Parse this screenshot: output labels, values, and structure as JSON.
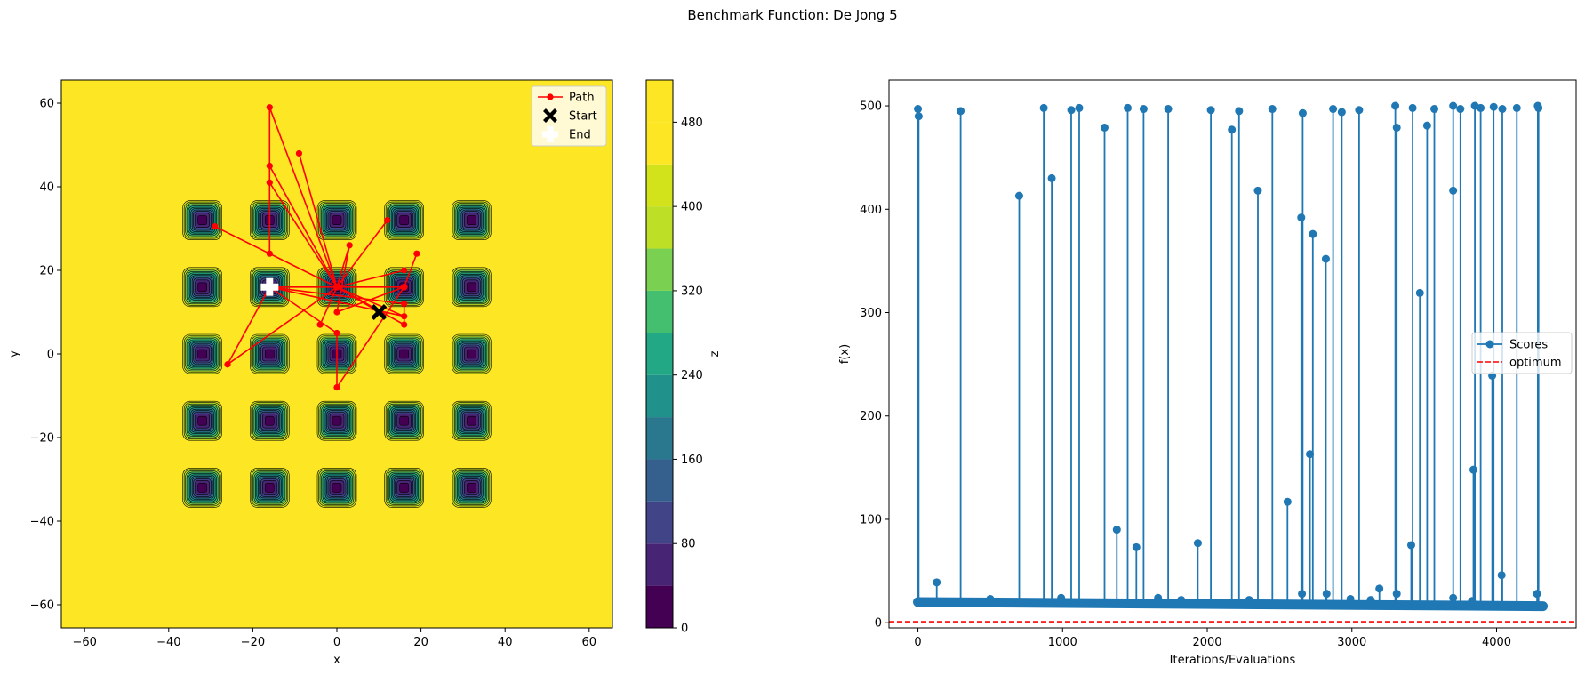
{
  "figure": {
    "suptitle": "Benchmark Function: De Jong 5"
  },
  "chart_data": [
    {
      "type": "contour",
      "title": "",
      "xlabel": "x",
      "ylabel": "y",
      "xlim": [
        -65.536,
        65.536
      ],
      "ylim": [
        -65.536,
        65.536
      ],
      "xticks": [
        -60,
        -40,
        -20,
        0,
        20,
        40,
        60
      ],
      "yticks": [
        -60,
        -40,
        -20,
        0,
        20,
        40,
        60
      ],
      "grid": false,
      "function": "De Jong 5 (Shekel's foxholes) surface, 5x5 foxholes at -32,-16,0,16,32",
      "foxhole_centers_1d": [
        -32,
        -16,
        0,
        16,
        32
      ],
      "colorbar": {
        "label": "z",
        "ticks": [
          0,
          80,
          160,
          240,
          320,
          400,
          480
        ],
        "range": [
          0,
          520
        ],
        "levels": [
          0,
          40,
          80,
          120,
          160,
          200,
          240,
          280,
          320,
          360,
          400,
          440,
          480,
          520
        ],
        "colors": [
          "#440154",
          "#482475",
          "#414487",
          "#355f8d",
          "#2a788e",
          "#21918c",
          "#22a884",
          "#44bf70",
          "#7ad151",
          "#bddf26",
          "#d2e21b",
          "#fde725",
          "#fde725"
        ]
      },
      "legend": {
        "loc": "upper right",
        "entries": [
          "Path",
          "Start",
          "End"
        ]
      },
      "path": {
        "name": "Path",
        "color": "#ff0000",
        "x": [
          10,
          0,
          16,
          0,
          -16,
          0,
          16,
          0,
          -16,
          0,
          16,
          19,
          16,
          0,
          -9,
          0,
          16,
          0,
          -16,
          -16,
          0,
          16,
          0,
          -29,
          0,
          16,
          0,
          -16,
          -16,
          0,
          16,
          0,
          12,
          0,
          16,
          0,
          -16,
          -26,
          0,
          -4,
          0,
          -16,
          16,
          0,
          -16,
          -16,
          0,
          0,
          16,
          0,
          3,
          0,
          16,
          16,
          -16
        ],
        "y": [
          10,
          16,
          16,
          16,
          16,
          16,
          16,
          16,
          16,
          16,
          16,
          24,
          16,
          16,
          48,
          16,
          16,
          16,
          59,
          41,
          16,
          16,
          16,
          30.5,
          16,
          16,
          16,
          45,
          24,
          16,
          16,
          16,
          32,
          16,
          20,
          16,
          16,
          -2.5,
          16,
          7,
          16,
          16,
          9,
          16,
          16,
          16,
          5,
          -8,
          16,
          10,
          26,
          16,
          7,
          12,
          16
        ]
      },
      "start": {
        "name": "Start",
        "x": 10,
        "y": 10,
        "color": "#000000"
      },
      "end": {
        "name": "End",
        "x": -16,
        "y": 16,
        "color": "#ffffff"
      }
    },
    {
      "type": "line",
      "title": "",
      "xlabel": "Iterations/Evaluations",
      "ylabel": "f(x)",
      "xlim": [
        -200,
        4550
      ],
      "ylim": [
        -5,
        525
      ],
      "xticks": [
        0,
        1000,
        2000,
        3000,
        4000
      ],
      "yticks": [
        0,
        100,
        200,
        300,
        400,
        500
      ],
      "grid": false,
      "legend": {
        "loc": "center right",
        "entries": [
          "Scores",
          "optimum"
        ]
      },
      "baseline": {
        "start_value": 20,
        "end_value": 16,
        "n_evals": 4320
      },
      "series": [
        {
          "name": "Scores",
          "color": "#1f77b4",
          "spikes": [
            [
              0,
              497
            ],
            [
              5,
              490
            ],
            [
              130,
              39
            ],
            [
              295,
              495
            ],
            [
              500,
              23
            ],
            [
              700,
              413
            ],
            [
              870,
              498
            ],
            [
              925,
              430
            ],
            [
              990,
              24
            ],
            [
              1060,
              496
            ],
            [
              1115,
              498
            ],
            [
              1290,
              479
            ],
            [
              1375,
              90
            ],
            [
              1450,
              498
            ],
            [
              1510,
              73
            ],
            [
              1560,
              497
            ],
            [
              1660,
              24
            ],
            [
              1730,
              497
            ],
            [
              1820,
              22
            ],
            [
              1935,
              77
            ],
            [
              2025,
              496
            ],
            [
              2170,
              477
            ],
            [
              2220,
              495
            ],
            [
              2290,
              22
            ],
            [
              2350,
              418
            ],
            [
              2450,
              497
            ],
            [
              2555,
              117
            ],
            [
              2650,
              392
            ],
            [
              2655,
              28
            ],
            [
              2660,
              493
            ],
            [
              2710,
              163
            ],
            [
              2730,
              376
            ],
            [
              2820,
              352
            ],
            [
              2825,
              28
            ],
            [
              2870,
              497
            ],
            [
              2930,
              494
            ],
            [
              2990,
              23
            ],
            [
              3050,
              496
            ],
            [
              3130,
              22
            ],
            [
              3190,
              33
            ],
            [
              3300,
              500
            ],
            [
              3310,
              479
            ],
            [
              3310,
              28
            ],
            [
              3410,
              75
            ],
            [
              3420,
              498
            ],
            [
              3470,
              319
            ],
            [
              3520,
              481
            ],
            [
              3570,
              497
            ],
            [
              3700,
              418
            ],
            [
              3700,
              500
            ],
            [
              3700,
              24
            ],
            [
              3750,
              497
            ],
            [
              3830,
              21
            ],
            [
              3840,
              148
            ],
            [
              3850,
              500
            ],
            [
              3890,
              498
            ],
            [
              3970,
              239
            ],
            [
              3980,
              499
            ],
            [
              4035,
              46
            ],
            [
              4040,
              497
            ],
            [
              4140,
              498
            ],
            [
              4280,
              28
            ],
            [
              4285,
              500
            ],
            [
              4290,
              498
            ]
          ]
        },
        {
          "name": "optimum",
          "color": "#ff0000",
          "value": 0.998,
          "style": "dashed"
        }
      ]
    }
  ]
}
